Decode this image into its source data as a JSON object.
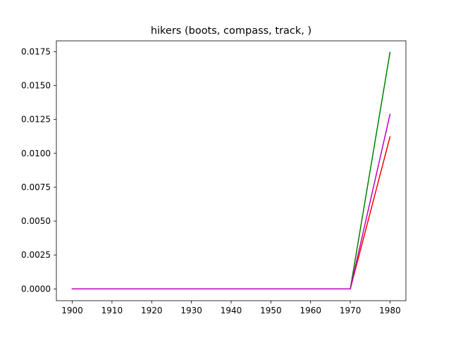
{
  "chart_data": {
    "type": "line",
    "title": "hikers (boots, compass, track, )",
    "xlabel": "",
    "ylabel": "",
    "x": [
      1900,
      1910,
      1920,
      1930,
      1940,
      1950,
      1960,
      1970,
      1980
    ],
    "xticks": [
      "1900",
      "1910",
      "1920",
      "1930",
      "1940",
      "1950",
      "1960",
      "1970",
      "1980"
    ],
    "yticks": [
      "0.0000",
      "0.0025",
      "0.0050",
      "0.0075",
      "0.0100",
      "0.0125",
      "0.0150",
      "0.0175"
    ],
    "xlim": [
      1896,
      1984
    ],
    "ylim": [
      -0.00087,
      0.0183
    ],
    "grid": false,
    "series": [
      {
        "color": "#008000",
        "values": [
          0,
          0,
          0,
          0,
          0,
          0,
          0,
          0,
          0.01745
        ]
      },
      {
        "color": "#ff0000",
        "values": [
          0,
          0,
          0,
          0,
          0,
          0,
          0,
          0,
          0.01122
        ]
      },
      {
        "color": "#bf00bf",
        "values": [
          0,
          0,
          0,
          0,
          0,
          0,
          0,
          0,
          0.01288
        ]
      }
    ]
  }
}
